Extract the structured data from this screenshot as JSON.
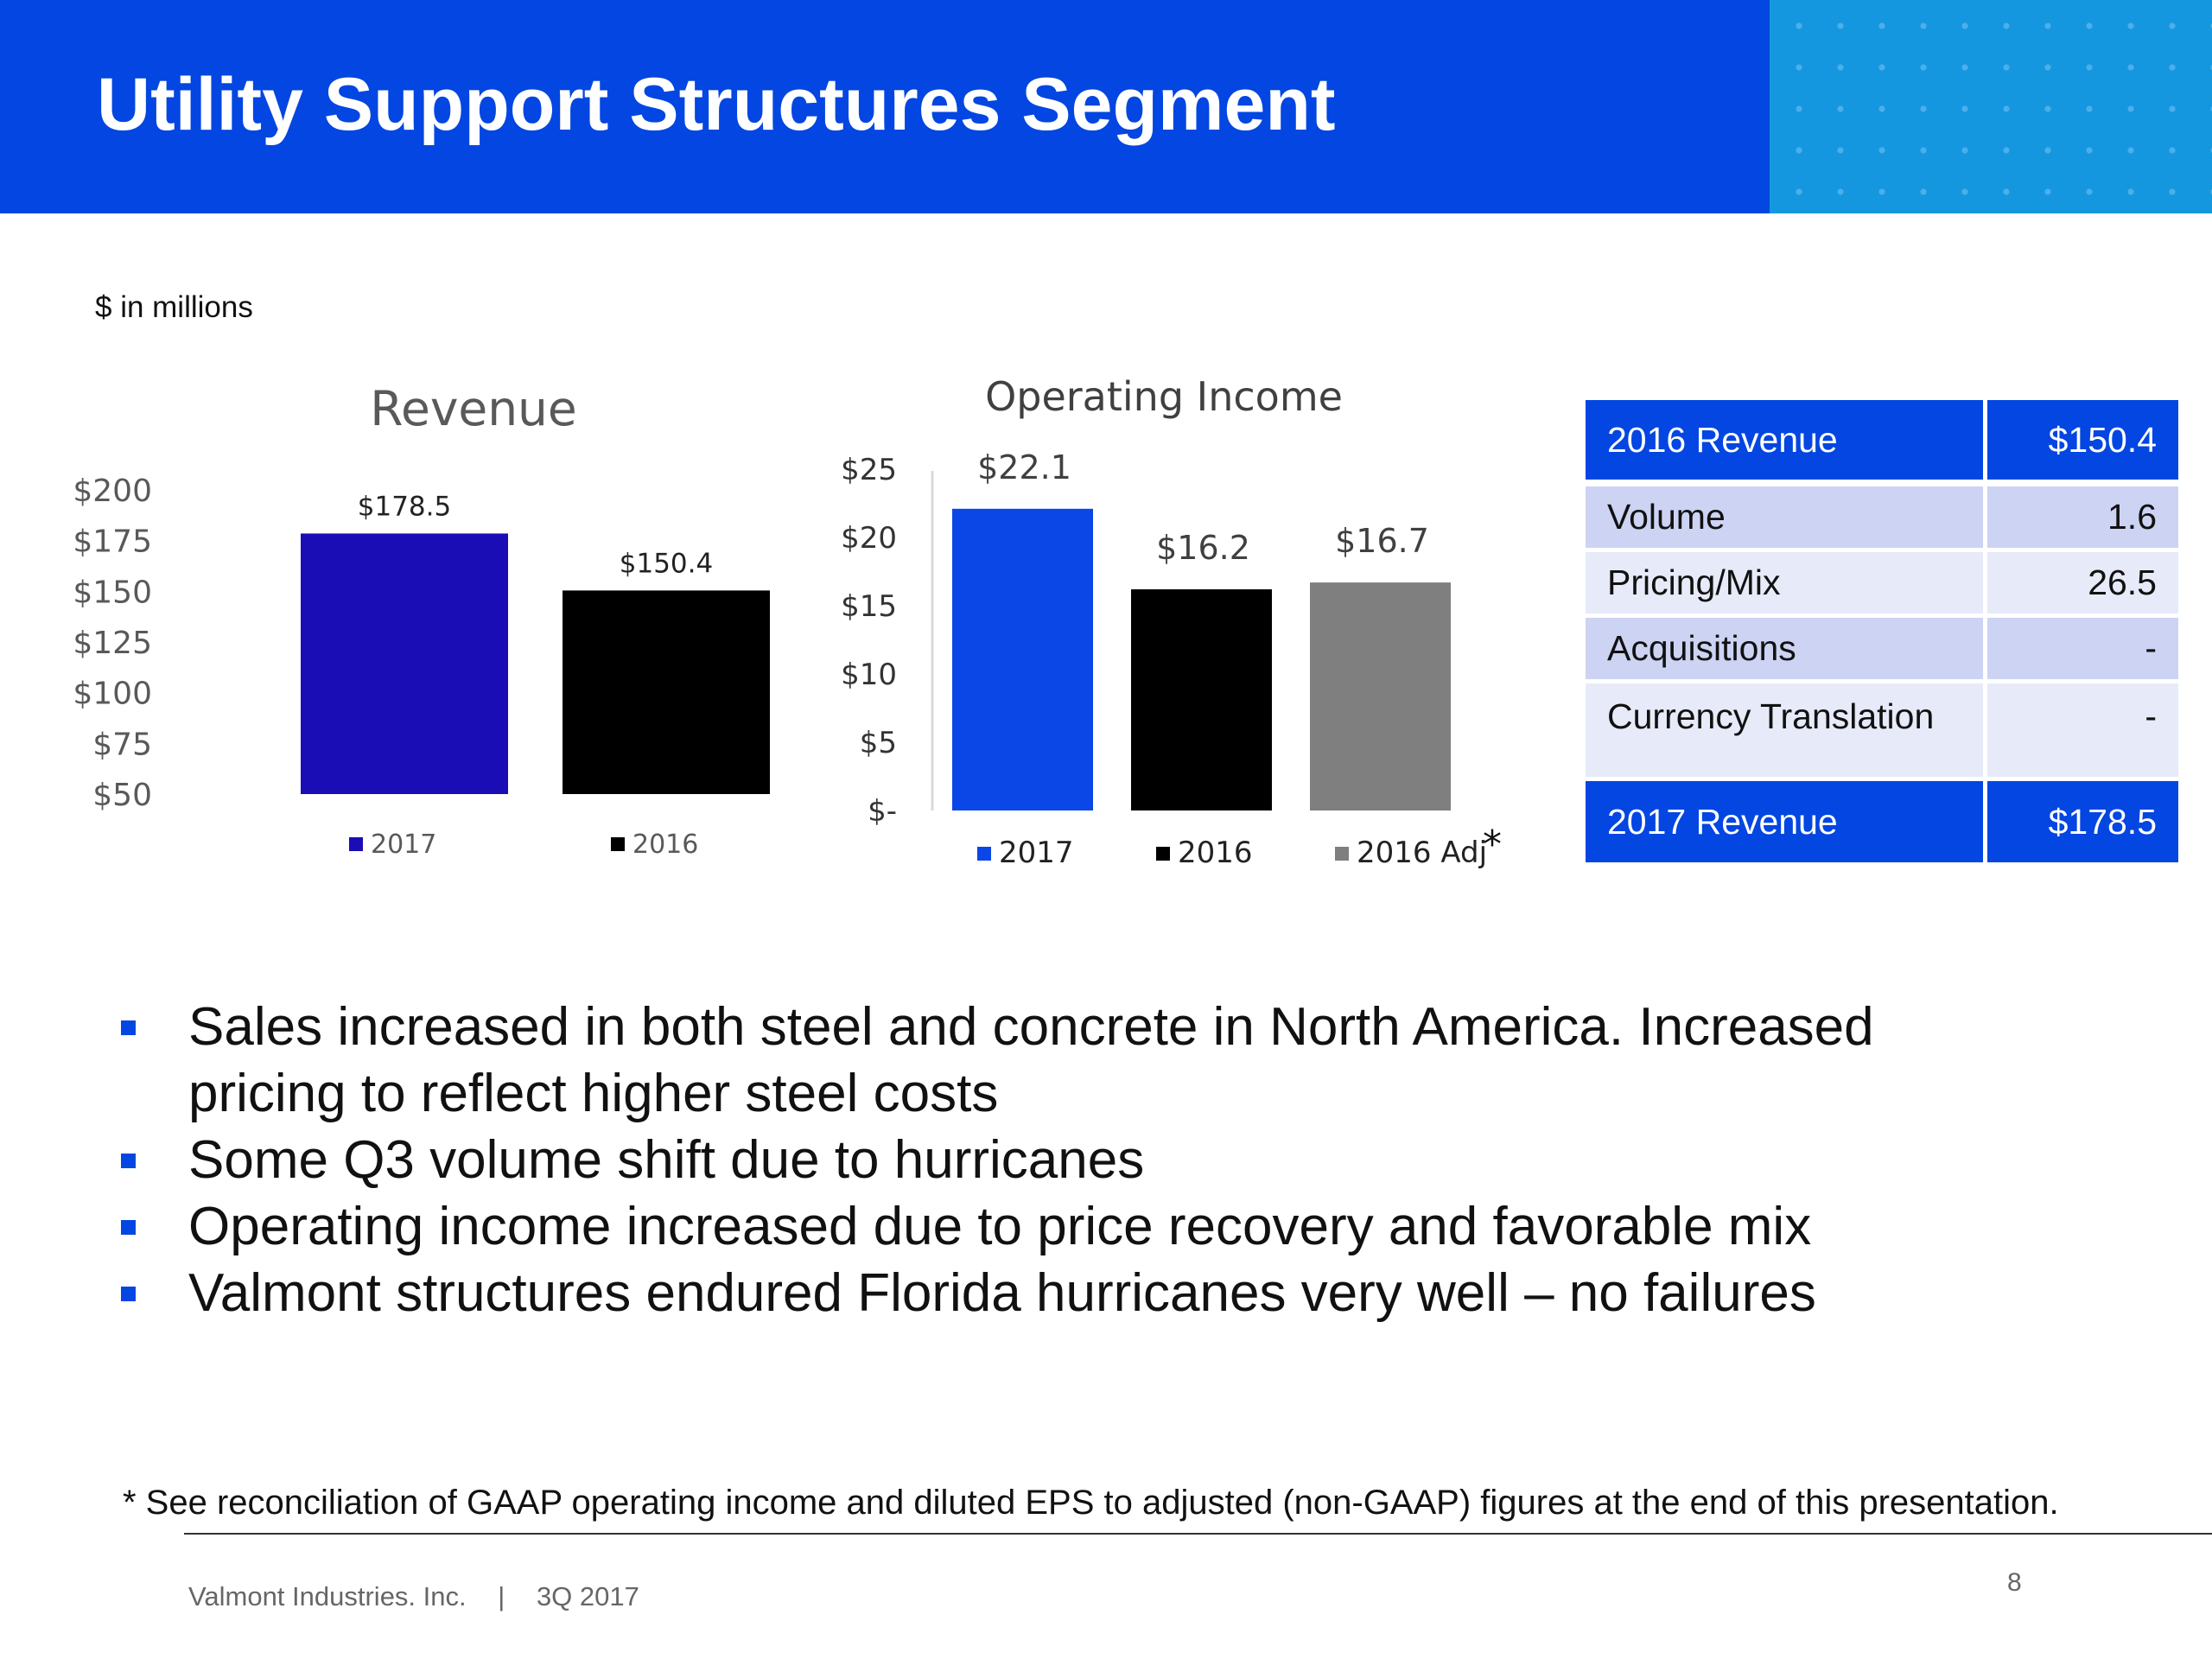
{
  "header": {
    "title": "Utility Support Structures Segment",
    "bg_color": "#0346e1",
    "accent_color": "#1597e0"
  },
  "units_note": "$ in millions",
  "chart_data": [
    {
      "type": "bar",
      "title": "Revenue",
      "categories": [
        "2017",
        "2016"
      ],
      "values": [
        178.5,
        150.4
      ],
      "value_labels": [
        "$178.5",
        "$150.4"
      ],
      "colors": [
        "#1a0db5",
        "#000000"
      ],
      "yticks": [
        "$50",
        "$75",
        "$100",
        "$125",
        "$150",
        "$175",
        "$200"
      ],
      "ylim": [
        50,
        200
      ],
      "legend": [
        "2017",
        "2016"
      ],
      "legend_position": "bottom",
      "grid": false
    },
    {
      "type": "bar",
      "title": "Operating Income",
      "categories": [
        "2017",
        "2016",
        "2016 Adj"
      ],
      "values": [
        22.1,
        16.2,
        16.7
      ],
      "value_labels": [
        "$22.1",
        "$16.2",
        "$16.7"
      ],
      "colors": [
        "#0b46e6",
        "#000000",
        "#7f7f7f"
      ],
      "yticks": [
        "$-",
        "$5",
        "$10",
        "$15",
        "$20",
        "$25"
      ],
      "ylim": [
        0,
        25
      ],
      "legend": [
        "2017",
        "2016",
        "2016 Adj"
      ],
      "legend_position": "bottom",
      "legend_note": "*",
      "grid": false
    }
  ],
  "revenue_bridge": {
    "header": {
      "label": "2016 Revenue",
      "value": "$150.4"
    },
    "rows": [
      {
        "label": "Volume",
        "value": "1.6"
      },
      {
        "label": "Pricing/Mix",
        "value": "26.5"
      },
      {
        "label": "Acquisitions",
        "value": "-"
      },
      {
        "label": "Currency Translation",
        "value": "-"
      }
    ],
    "footer": {
      "label": "2017 Revenue",
      "value": "$178.5"
    }
  },
  "bullets": [
    [
      "Sales increased in both steel and concrete in North America. Increased",
      "pricing to reflect higher steel costs"
    ],
    [
      "Some Q3 volume shift due to hurricanes"
    ],
    [
      "Operating income increased due to price recovery and favorable mix"
    ],
    [
      "Valmont structures endured Florida hurricanes very well – no failures"
    ]
  ],
  "footnote": "* See reconciliation of GAAP operating income and diluted EPS to adjusted (non-GAAP) figures at the end of this presentation.",
  "footer": {
    "company": "Valmont Industries. Inc.",
    "separator": "|",
    "period": "3Q 2017",
    "page_number": "8"
  }
}
